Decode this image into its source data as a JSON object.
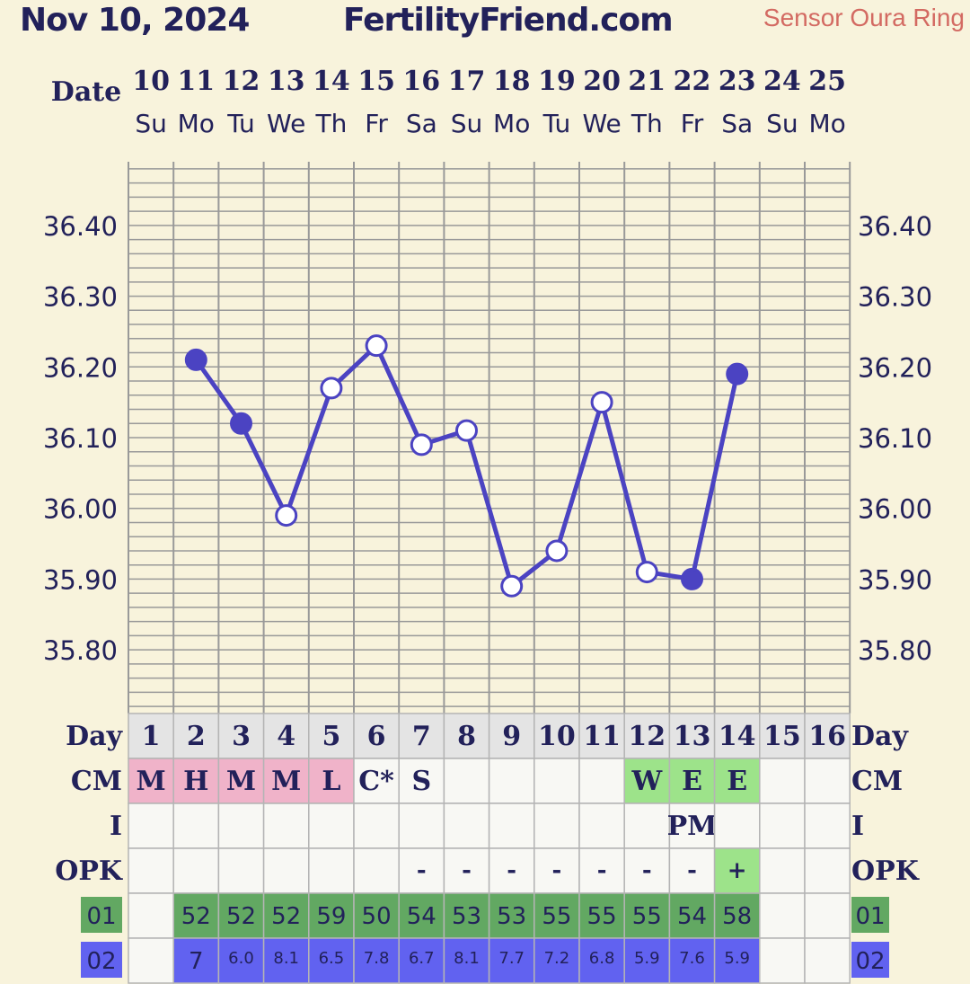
{
  "header": {
    "date": "Nov 10, 2024",
    "site": "FertilityFriend.com",
    "sensor": "Sensor Oura Ring"
  },
  "chart_data": {
    "type": "line",
    "date_label": "Date",
    "dates": [
      "10",
      "11",
      "12",
      "13",
      "14",
      "15",
      "16",
      "17",
      "18",
      "19",
      "20",
      "21",
      "22",
      "23",
      "24",
      "25"
    ],
    "weekdays": [
      "Su",
      "Mo",
      "Tu",
      "We",
      "Th",
      "Fr",
      "Sa",
      "Su",
      "Mo",
      "Tu",
      "We",
      "Th",
      "Fr",
      "Sa",
      "Su",
      "Mo"
    ],
    "y_ticks": [
      "36.40",
      "36.30",
      "36.20",
      "36.10",
      "36.00",
      "35.90",
      "35.80"
    ],
    "ylim": [
      35.71,
      36.49
    ],
    "grid": true,
    "temps": [
      null,
      36.21,
      36.12,
      35.99,
      36.17,
      36.23,
      36.09,
      36.11,
      35.89,
      35.94,
      36.15,
      35.91,
      35.9,
      36.19,
      null,
      null
    ],
    "filled": [
      false,
      true,
      true,
      false,
      false,
      false,
      false,
      false,
      false,
      false,
      false,
      false,
      true,
      true,
      false,
      false
    ],
    "rows": {
      "day": {
        "label": "Day",
        "values": [
          "1",
          "2",
          "3",
          "4",
          "5",
          "6",
          "7",
          "8",
          "9",
          "10",
          "11",
          "12",
          "13",
          "14",
          "15",
          "16"
        ]
      },
      "cm": {
        "label": "CM",
        "values": [
          "M",
          "H",
          "M",
          "M",
          "L",
          "C*",
          "S",
          "",
          "",
          "",
          "",
          "W",
          "E",
          "E",
          "",
          ""
        ]
      },
      "i": {
        "label": "I",
        "values": [
          "",
          "",
          "",
          "",
          "",
          "",
          "",
          "",
          "",
          "",
          "",
          "",
          "PM",
          "",
          "",
          ""
        ]
      },
      "opk": {
        "label": "OPK",
        "values": [
          "",
          "",
          "",
          "",
          "",
          "",
          "-",
          "-",
          "-",
          "-",
          "-",
          "-",
          "-",
          "+",
          "",
          ""
        ]
      },
      "o1": {
        "label": "01",
        "values": [
          "",
          "52",
          "52",
          "52",
          "59",
          "50",
          "54",
          "53",
          "53",
          "55",
          "55",
          "55",
          "54",
          "58",
          "",
          ""
        ]
      },
      "o2": {
        "label": "02",
        "values": [
          "",
          "7",
          "6.0",
          "8.1",
          "6.5",
          "7.8",
          "6.7",
          "8.1",
          "7.7",
          "7.2",
          "6.8",
          "5.9",
          "7.6",
          "5.9",
          "",
          ""
        ]
      }
    },
    "colors": {
      "line": "#4b43c2",
      "grid": "#999999",
      "background": "#f8f3dc",
      "cm_menses": "#f0b3c9",
      "cm_fertile": "#9de38a",
      "opk_positive": "#9de38a",
      "row01": "#62a862",
      "row02": "#6162f0",
      "day_row": "#e4e4e4",
      "cell_empty": "#f8f8f4"
    }
  }
}
